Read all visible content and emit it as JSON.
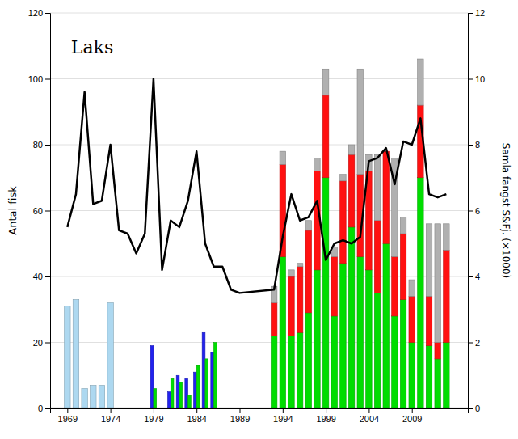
{
  "chart_data": {
    "type": "bar",
    "title": "Laks",
    "ylabel": "Antal fisk",
    "y2label": "Samla fangst S&Fj. (×1000)",
    "xlim": [
      1967.0,
      2015.5
    ],
    "xticks": [
      1969,
      1974,
      1979,
      1984,
      1989,
      1994,
      1999,
      2004,
      2009
    ],
    "ylim": [
      0,
      120
    ],
    "yticks": [
      0,
      20,
      40,
      60,
      80,
      100,
      120
    ],
    "y2lim": [
      0,
      12
    ],
    "y2ticks": [
      0,
      2,
      4,
      6,
      8,
      10,
      12
    ],
    "grid": true,
    "stacked": true,
    "series": [
      {
        "type": "bar",
        "color": "#add8f0",
        "x": [
          1969,
          1970,
          1971,
          1972,
          1973,
          1974
        ],
        "values": [
          31,
          33,
          6,
          7,
          7,
          32
        ]
      },
      {
        "type": "grouped",
        "color": "#2222ee",
        "x": [
          1979,
          1981,
          1982,
          1983,
          1984,
          1985,
          1986
        ],
        "values": [
          19,
          5,
          10,
          9,
          11,
          23,
          17
        ]
      },
      {
        "type": "grouped",
        "color": "#00dd00",
        "x": [
          1979,
          1981,
          1982,
          1983,
          1984,
          1985,
          1986
        ],
        "values": [
          6,
          9,
          8,
          4,
          13,
          15,
          20
        ]
      },
      {
        "type": "bar",
        "color": "#00dd00",
        "x": [
          1993,
          1994,
          1995,
          1996,
          1997,
          1998,
          1999,
          2000,
          2001,
          2002,
          2003,
          2004,
          2005,
          2006,
          2007,
          2008,
          2009,
          2010,
          2011,
          2012,
          2013
        ],
        "values": [
          22,
          46,
          22,
          23,
          29,
          42,
          70,
          28,
          44,
          55,
          46,
          42,
          35,
          50,
          28,
          33,
          20,
          70,
          19,
          15,
          20
        ]
      },
      {
        "type": "bar",
        "color": "#ff1111",
        "x": [
          1993,
          1994,
          1995,
          1996,
          1997,
          1998,
          1999,
          2000,
          2001,
          2002,
          2003,
          2004,
          2005,
          2006,
          2007,
          2008,
          2009,
          2010,
          2011,
          2012,
          2013
        ],
        "values": [
          10,
          28,
          18,
          20,
          25,
          30,
          25,
          18,
          25,
          22,
          25,
          30,
          22,
          28,
          18,
          20,
          14,
          22,
          15,
          5,
          28
        ]
      },
      {
        "type": "bar",
        "color": "#b0b0b0",
        "x": [
          1993,
          1994,
          1995,
          1996,
          1997,
          1998,
          1999,
          2000,
          2001,
          2002,
          2003,
          2004,
          2005,
          2006,
          2007,
          2008,
          2009,
          2010,
          2011,
          2012,
          2013
        ],
        "values": [
          5,
          4,
          2,
          1,
          3,
          4,
          8,
          3,
          2,
          3,
          32,
          5,
          20,
          0,
          30,
          5,
          5,
          14,
          22,
          36,
          8
        ]
      },
      {
        "type": "line",
        "axis": "y2",
        "color": "#000000",
        "x": [
          1969,
          1970,
          1971,
          1972,
          1973,
          1974,
          1975,
          1976,
          1977,
          1978,
          1979,
          1980,
          1981,
          1982,
          1983,
          1984,
          1985,
          1986,
          1987,
          1988,
          1989,
          1993,
          1994,
          1995,
          1996,
          1997,
          1998,
          1999,
          2000,
          2001,
          2002,
          2003,
          2004,
          2005,
          2006,
          2007,
          2008,
          2009,
          2010,
          2011,
          2012,
          2013
        ],
        "values": [
          5.5,
          6.5,
          9.6,
          6.2,
          6.3,
          8.0,
          5.4,
          5.3,
          4.7,
          5.3,
          10.0,
          4.2,
          5.7,
          5.5,
          6.3,
          7.8,
          5.0,
          4.3,
          4.3,
          3.6,
          3.5,
          3.6,
          5.2,
          6.5,
          5.7,
          5.8,
          6.3,
          4.5,
          5.0,
          5.1,
          5.0,
          5.2,
          7.5,
          7.6,
          7.9,
          6.8,
          8.1,
          8.0,
          8.8,
          6.5,
          6.4,
          6.5
        ]
      }
    ]
  }
}
